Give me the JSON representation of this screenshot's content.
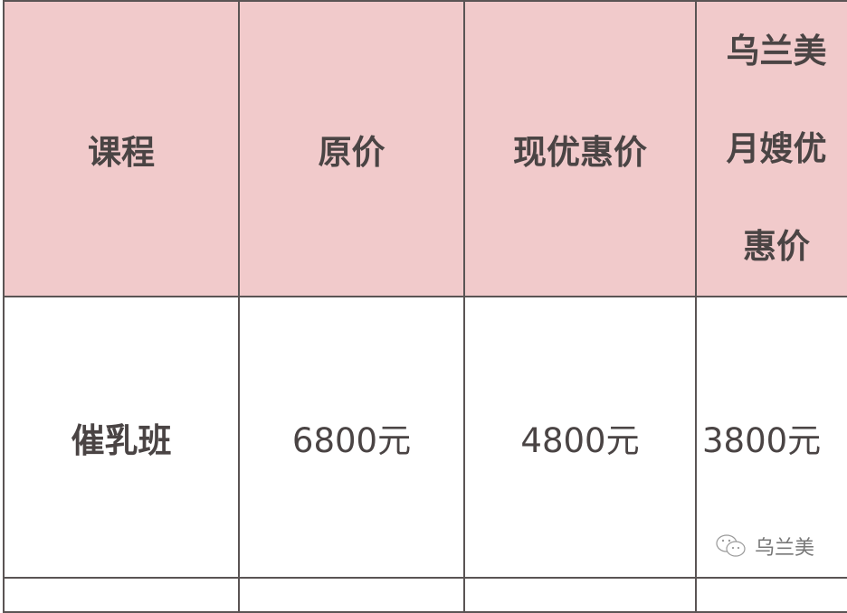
{
  "table": {
    "headers": [
      "课程",
      "原价",
      "现优惠价",
      [
        "乌兰美",
        "月嫂优",
        "惠价"
      ]
    ],
    "rows": [
      [
        "催乳班",
        "6800元",
        "4800元",
        "3800元"
      ]
    ]
  },
  "watermark": {
    "icon": "wechat-icon",
    "text": "乌兰美"
  },
  "colors": {
    "header_bg": "#f1cacb",
    "border": "#5a5454",
    "text": "#4a4444"
  }
}
